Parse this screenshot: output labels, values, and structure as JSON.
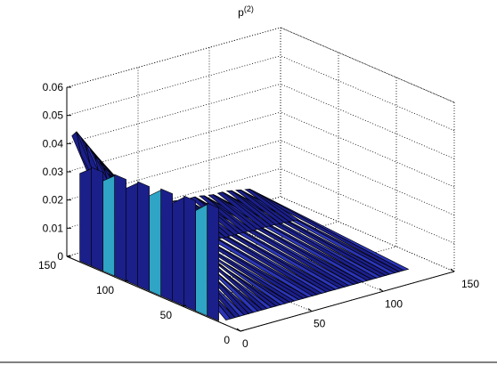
{
  "chart_data": {
    "type": "surface",
    "title": "p",
    "title_superscript": "(2)",
    "zlim": [
      0,
      0.06
    ],
    "z_ticks": [
      "0",
      "0.01",
      "0.02",
      "0.03",
      "0.04",
      "0.05",
      "0.06"
    ],
    "xlim": [
      0,
      150
    ],
    "x_ticks": [
      "0",
      "50",
      "100",
      "150"
    ],
    "ylim": [
      0,
      150
    ],
    "y_ticks": [
      "0",
      "50",
      "100",
      "150"
    ],
    "grid": true,
    "colormap": "jet (mostly dark blue)",
    "surface_profile": {
      "description_values": "approximate ridge height along the back (y≈150) edge vs x",
      "x": [
        0,
        5,
        10,
        15,
        20,
        25,
        30,
        35,
        40,
        45,
        50,
        60,
        70,
        80,
        90,
        100,
        110,
        120,
        130
      ],
      "z_peak": [
        0.042,
        0.044,
        0.04,
        0.036,
        0.032,
        0.028,
        0.024,
        0.02,
        0.016,
        0.013,
        0.011,
        0.01,
        0.01,
        0.009,
        0.009,
        0.008,
        0.008,
        0.007,
        0.006
      ]
    },
    "colors": {
      "surface": "#1b1f8a",
      "surface_light": "#2b35b8",
      "edge": "#000000",
      "grid": "#000000"
    }
  }
}
